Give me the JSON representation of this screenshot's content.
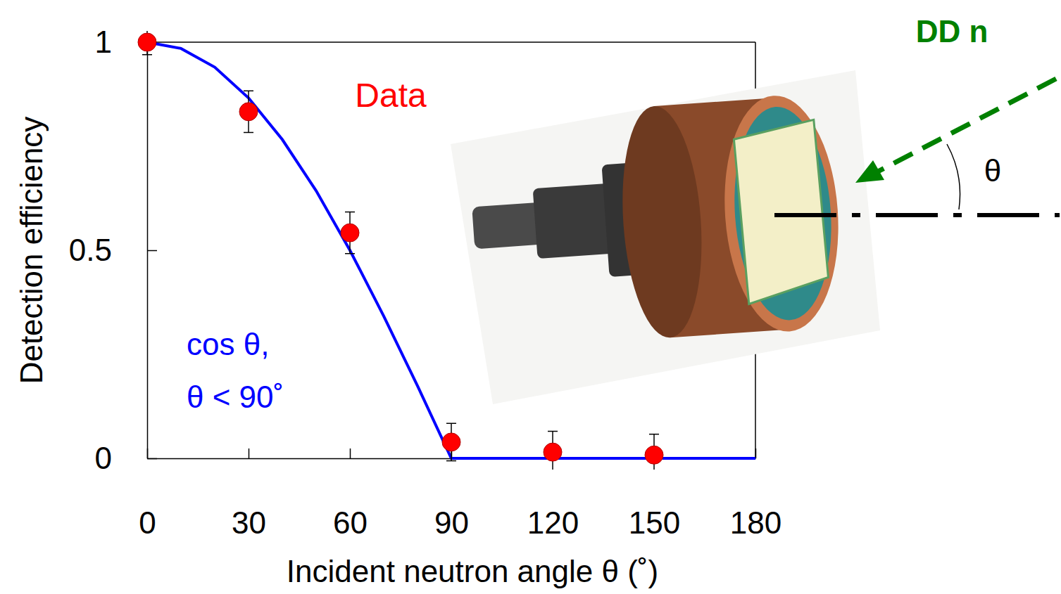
{
  "chart_data": {
    "type": "scatter",
    "x_label": "Incident neutron angle θ (˚)",
    "y_label": "Detection efficiency",
    "xlim": [
      0,
      180
    ],
    "xticks": [
      0,
      30,
      60,
      90,
      120,
      150,
      180
    ],
    "ylim": [
      0,
      1
    ],
    "yticks": [
      0,
      0.5,
      1
    ],
    "series": [
      {
        "name": "Data",
        "type": "scatter",
        "color": "#ff0000",
        "marker": "circle",
        "x": [
          0,
          30,
          60,
          90,
          120,
          150
        ],
        "values": [
          1.0,
          0.833,
          0.542,
          0.039,
          0.015,
          0.008
        ],
        "errors": [
          0.03,
          0.05,
          0.05,
          0.045,
          0.05,
          0.05
        ]
      },
      {
        "type": "line",
        "color": "#0000ff",
        "line_style": "solid",
        "x": [
          0,
          10,
          20,
          30,
          40,
          50,
          60,
          70,
          80,
          90,
          180
        ],
        "values": [
          1.0,
          0.985,
          0.94,
          0.866,
          0.766,
          0.643,
          0.5,
          0.342,
          0.174,
          0.0,
          0.0
        ]
      }
    ],
    "annotations": [
      {
        "text": "cos θ,",
        "color": "#0000ff"
      },
      {
        "text": "θ < 90˚",
        "color": "#0000ff"
      },
      {
        "text": "DD n",
        "color": "#008000"
      },
      {
        "text": "θ",
        "color": "#000000"
      }
    ]
  }
}
